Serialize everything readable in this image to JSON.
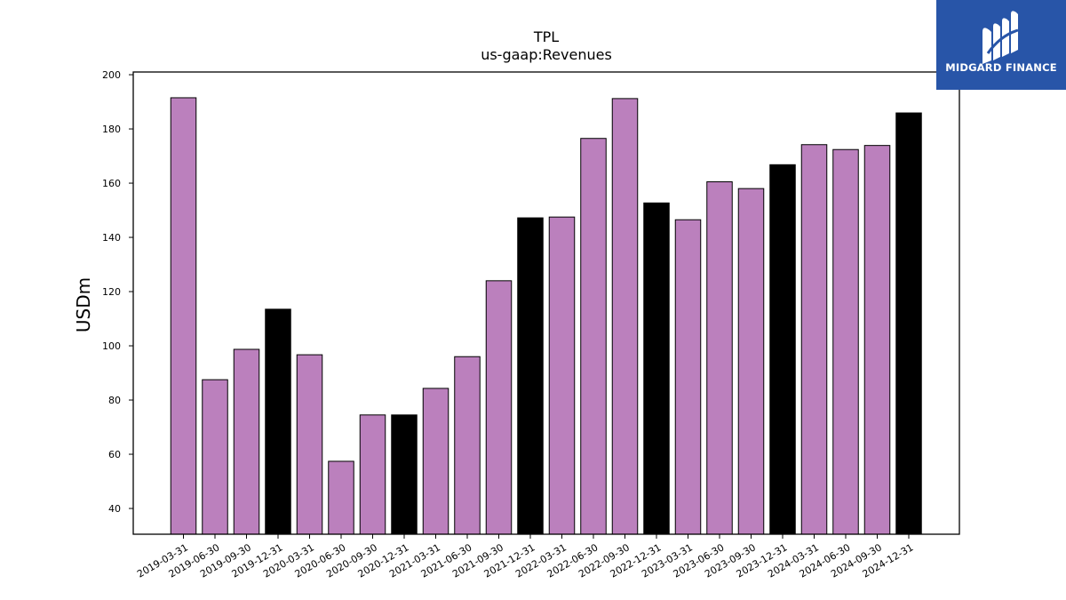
{
  "logo": {
    "text": "MIDGARD FINANCE",
    "background": "#2855a8"
  },
  "chart_data": {
    "type": "bar",
    "title": "TPL",
    "subtitle": "us-gaap:Revenues",
    "xlabel": "",
    "ylabel": "USDm",
    "ylim": [
      30.5,
      201
    ],
    "yticks": [
      40,
      60,
      80,
      100,
      120,
      140,
      160,
      180,
      200
    ],
    "grid": false,
    "categories": [
      "2019-03-31",
      "2019-06-30",
      "2019-09-30",
      "2019-12-31",
      "2020-03-31",
      "2020-06-30",
      "2020-09-30",
      "2020-12-31",
      "2021-03-31",
      "2021-06-30",
      "2021-09-30",
      "2021-12-31",
      "2022-03-31",
      "2022-06-30",
      "2022-09-30",
      "2022-12-31",
      "2023-03-31",
      "2023-06-30",
      "2023-09-30",
      "2023-12-31",
      "2024-03-31",
      "2024-06-30",
      "2024-09-30",
      "2024-12-31"
    ],
    "values": [
      191.5,
      87.5,
      98.7,
      113.5,
      96.7,
      57.4,
      74.5,
      74.5,
      84.3,
      96.0,
      124.0,
      147.2,
      147.5,
      176.5,
      191.2,
      152.7,
      146.5,
      160.5,
      158.0,
      166.8,
      174.2,
      172.4,
      173.9,
      185.9
    ],
    "colors": {
      "quarter": "#bb80bd",
      "year_end": "#000000",
      "edge": "#000000"
    }
  }
}
